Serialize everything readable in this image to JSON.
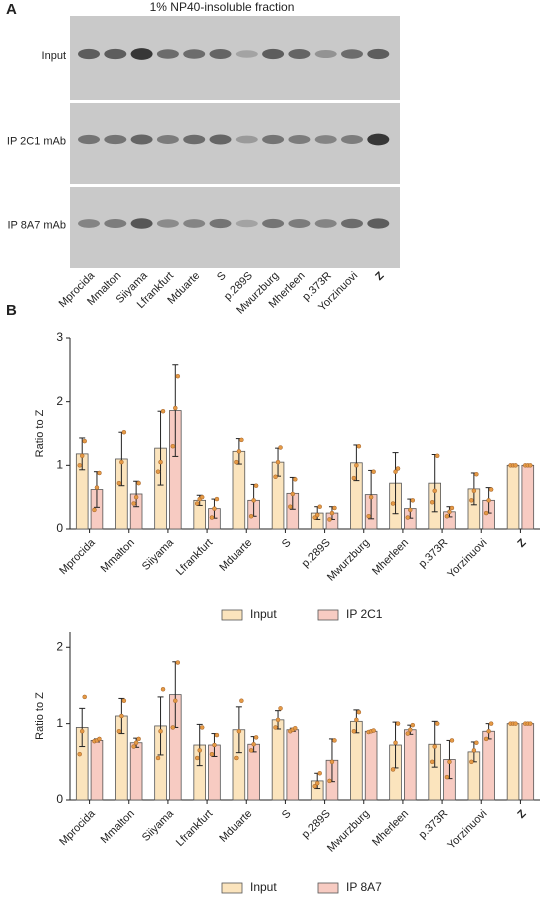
{
  "panel_a": {
    "label": "A",
    "title": "1% NP40-insoluble fraction",
    "rows": [
      "Input",
      "IP 2C1 mAb",
      "IP 8A7 mAb"
    ],
    "lanes": [
      "Mprocida",
      "Mmalton",
      "Siiyama",
      "Lfrankfurt",
      "Mduarte",
      "S",
      "p.289S",
      "Mwurzburg",
      "Mherleen",
      "p.373R",
      "Yorzinuovi",
      "Z"
    ]
  },
  "panel_b": {
    "label": "B"
  },
  "chart_data": [
    {
      "type": "bar",
      "y_label": "Ratio to Z",
      "categories": [
        "Mprocida",
        "Mmalton",
        "Siiyama",
        "Lfrankfurt",
        "Mduarte",
        "S",
        "p.289S",
        "Mwurzburg",
        "Mherleen",
        "p.373R",
        "Yorzinuovi",
        "Z"
      ],
      "series": [
        {
          "name": "Input",
          "color": "#fbe4bd",
          "values": [
            1.18,
            1.1,
            1.27,
            0.45,
            1.22,
            1.05,
            0.25,
            1.04,
            0.72,
            0.72,
            0.63,
            1.0
          ],
          "errors": [
            0.25,
            0.42,
            0.58,
            0.08,
            0.2,
            0.22,
            0.1,
            0.28,
            0.48,
            0.45,
            0.25,
            0
          ],
          "points": [
            [
              1.0,
              1.15,
              1.38
            ],
            [
              0.72,
              1.05,
              1.52
            ],
            [
              0.9,
              1.05,
              1.85
            ],
            [
              0.4,
              0.47,
              0.5
            ],
            [
              1.05,
              1.22,
              1.4
            ],
            [
              0.82,
              1.05,
              1.28
            ],
            [
              0.18,
              0.22,
              0.35
            ],
            [
              0.8,
              1.0,
              1.3
            ],
            [
              0.4,
              0.9,
              0.95
            ],
            [
              0.42,
              0.6,
              1.15
            ],
            [
              0.45,
              0.6,
              0.86
            ],
            [
              1.0,
              1.0,
              1.0
            ]
          ]
        },
        {
          "name": "IP 2C1",
          "color": "#f7cbc2",
          "values": [
            0.62,
            0.55,
            1.86,
            0.32,
            0.45,
            0.56,
            0.25,
            0.54,
            0.32,
            0.27,
            0.45,
            1.0
          ],
          "errors": [
            0.28,
            0.2,
            0.72,
            0.15,
            0.25,
            0.25,
            0.1,
            0.38,
            0.15,
            0.08,
            0.2,
            0
          ],
          "points": [
            [
              0.3,
              0.65,
              0.88
            ],
            [
              0.4,
              0.5,
              0.72
            ],
            [
              1.3,
              1.9,
              2.4
            ],
            [
              0.18,
              0.32,
              0.47
            ],
            [
              0.2,
              0.45,
              0.68
            ],
            [
              0.35,
              0.55,
              0.78
            ],
            [
              0.15,
              0.25,
              0.33
            ],
            [
              0.2,
              0.5,
              0.9
            ],
            [
              0.18,
              0.3,
              0.45
            ],
            [
              0.2,
              0.27,
              0.33
            ],
            [
              0.25,
              0.45,
              0.62
            ],
            [
              1.0,
              1.0,
              1.0
            ]
          ]
        }
      ],
      "ylim": [
        0,
        3
      ],
      "yticks": [
        0,
        1,
        2,
        3
      ],
      "legend": "bottom"
    },
    {
      "type": "bar",
      "y_label": "Ratio to Z",
      "categories": [
        "Mprocida",
        "Mmalton",
        "Siiyama",
        "Lfrankfurt",
        "Mduarte",
        "S",
        "p.289S",
        "Mwurzburg",
        "Mherleen",
        "p.373R",
        "Yorzinuovi",
        "Z"
      ],
      "series": [
        {
          "name": "Input",
          "color": "#fbe4bd",
          "values": [
            0.95,
            1.1,
            0.97,
            0.72,
            0.92,
            1.05,
            0.25,
            1.03,
            0.72,
            0.73,
            0.63,
            1.0
          ],
          "errors": [
            0.25,
            0.23,
            0.38,
            0.27,
            0.3,
            0.12,
            0.1,
            0.15,
            0.3,
            0.3,
            0.13,
            0
          ],
          "points": [
            [
              0.6,
              0.9,
              1.35
            ],
            [
              0.9,
              1.1,
              1.3
            ],
            [
              0.55,
              0.9,
              1.45
            ],
            [
              0.55,
              0.65,
              0.95
            ],
            [
              0.55,
              0.9,
              1.3
            ],
            [
              0.95,
              1.05,
              1.2
            ],
            [
              0.18,
              0.22,
              0.35
            ],
            [
              0.9,
              1.05,
              1.15
            ],
            [
              0.4,
              0.75,
              1.0
            ],
            [
              0.5,
              0.7,
              1.0
            ],
            [
              0.5,
              0.65,
              0.75
            ],
            [
              1.0,
              1.0,
              1.0
            ]
          ]
        },
        {
          "name": "IP 8A7",
          "color": "#f7cbc2",
          "values": [
            0.78,
            0.75,
            1.38,
            0.72,
            0.73,
            0.92,
            0.52,
            0.9,
            0.92,
            0.53,
            0.9,
            1.0
          ],
          "errors": [
            0.02,
            0.06,
            0.43,
            0.15,
            0.1,
            0.02,
            0.28,
            0.01,
            0.06,
            0.25,
            0.1,
            0
          ],
          "points": [
            [
              0.77,
              0.78,
              0.8
            ],
            [
              0.7,
              0.75,
              0.8
            ],
            [
              0.95,
              1.3,
              1.8
            ],
            [
              0.6,
              0.72,
              0.85
            ],
            [
              0.65,
              0.73,
              0.82
            ],
            [
              0.9,
              0.92,
              0.94
            ],
            [
              0.25,
              0.5,
              0.78
            ],
            [
              0.89,
              0.9,
              0.91
            ],
            [
              0.87,
              0.92,
              0.98
            ],
            [
              0.3,
              0.5,
              0.78
            ],
            [
              0.8,
              0.9,
              1.0
            ],
            [
              1.0,
              1.0,
              1.0
            ]
          ]
        }
      ],
      "ylim": [
        0,
        2.2
      ],
      "yticks": [
        0,
        1,
        2
      ],
      "legend": "bottom"
    }
  ]
}
